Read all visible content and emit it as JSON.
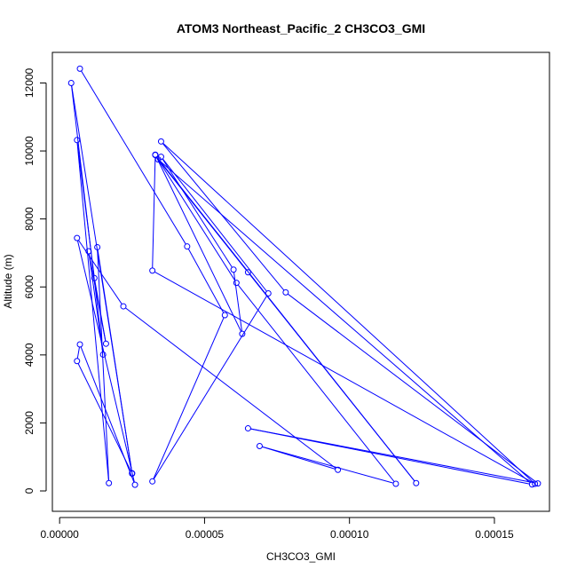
{
  "chart_data": {
    "type": "line",
    "title": "ATOM3 Northeast_Pacific_2 CH3CO3_GMI",
    "xlabel": "CH3CO3_GMI",
    "ylabel": "Altitude (m)",
    "xlim": [
      -2.5e-06,
      0.000169
    ],
    "ylim": [
      -600,
      12900
    ],
    "xticks": [
      0.0,
      5e-05,
      0.0001,
      0.00015
    ],
    "xtick_labels": [
      "0.00000",
      "0.00005",
      "0.00010",
      "0.00015"
    ],
    "yticks": [
      0,
      2000,
      4000,
      6000,
      8000,
      10000,
      12000
    ],
    "ytick_labels": [
      "0",
      "2000",
      "4000",
      "6000",
      "8000",
      "10000",
      "12000"
    ],
    "grid": false,
    "series": [
      {
        "color": "#0000ff",
        "marker": "open-circle",
        "points": [
          [
            7e-06,
            12420
          ],
          [
            4.4e-05,
            7190
          ],
          [
            5.7e-05,
            5170
          ],
          [
            3.2e-05,
            280
          ],
          [
            7.2e-05,
            5810
          ],
          [
            3.5e-05,
            9830
          ],
          [
            6e-05,
            6510
          ],
          [
            6.3e-05,
            4620
          ],
          [
            3.3e-05,
            9890
          ],
          [
            3.2e-05,
            6480
          ],
          [
            0.000164,
            210
          ],
          [
            3.5e-05,
            10280
          ],
          [
            7.8e-05,
            5840
          ],
          [
            0.000165,
            220
          ],
          [
            6.5e-05,
            1840
          ],
          [
            0.000163,
            190
          ],
          [
            3.4e-05,
            9750
          ],
          [
            6.5e-05,
            6430
          ],
          [
            0.000123,
            230
          ],
          [
            3.3e-05,
            9880
          ],
          [
            6.1e-05,
            6120
          ],
          [
            0.000116,
            210
          ],
          [
            6.9e-05,
            1320
          ],
          [
            9.6e-05,
            620
          ],
          [
            2.2e-05,
            5430
          ],
          [
            6e-06,
            7440
          ],
          [
            2.6e-05,
            180
          ],
          [
            7e-06,
            4310
          ],
          [
            6e-06,
            3820
          ],
          [
            2.5e-05,
            510
          ],
          [
            1.3e-05,
            7170
          ],
          [
            1.7e-05,
            230
          ],
          [
            6e-06,
            10320
          ],
          [
            1.2e-05,
            6260
          ],
          [
            1.6e-05,
            4330
          ],
          [
            1e-05,
            7050
          ],
          [
            1.5e-05,
            4010
          ],
          [
            4e-06,
            12000
          ],
          [
            2.5e-05,
            520
          ]
        ]
      }
    ]
  }
}
